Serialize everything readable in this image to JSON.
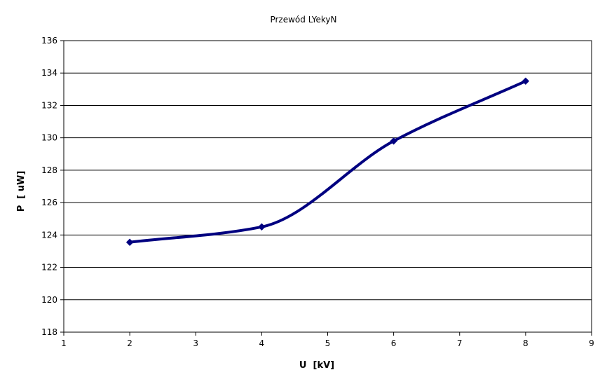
{
  "chart_data": {
    "type": "line",
    "title": "Przewód LYekyN",
    "xlabel": "U  [kV]",
    "ylabel": "P  [ uW]",
    "xlim": [
      1,
      9
    ],
    "ylim": [
      118,
      136
    ],
    "xticks": [
      "1",
      "2",
      "3",
      "4",
      "5",
      "6",
      "7",
      "8",
      "9"
    ],
    "yticks": [
      "118",
      "120",
      "122",
      "124",
      "126",
      "128",
      "130",
      "132",
      "134",
      "136"
    ],
    "grid": "horizontal",
    "legend": "none",
    "series": [
      {
        "color": "#000080",
        "smooth": true,
        "x": [
          2,
          4,
          6,
          8
        ],
        "y": [
          123.55,
          124.5,
          129.8,
          133.5
        ]
      }
    ]
  }
}
